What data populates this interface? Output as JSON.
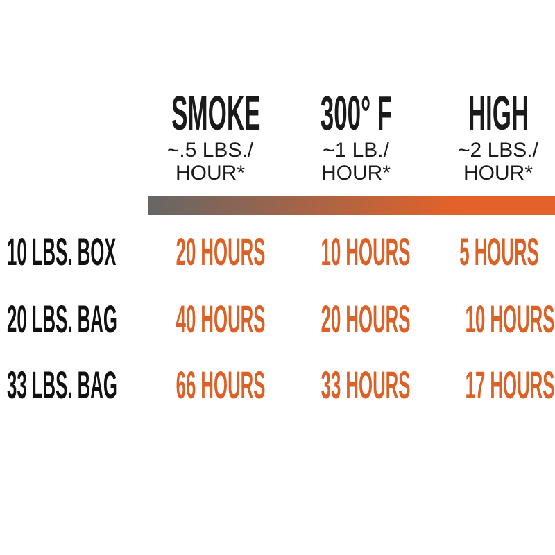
{
  "accent_color": "#dc6127",
  "gradient": {
    "from": "#666666",
    "to": "#e2622a"
  },
  "columns": [
    {
      "title": "SMOKE",
      "rate_line1": "~.5 LBS./",
      "rate_line2": "HOUR*"
    },
    {
      "title": "300° F",
      "rate_line1": "~1 LB./",
      "rate_line2": "HOUR*"
    },
    {
      "title": "HIGH",
      "rate_line1": "~2 LBS./",
      "rate_line2": "HOUR*"
    }
  ],
  "rows": [
    {
      "label": "10 LBS. BOX",
      "values": [
        "20 HOURS",
        "10 HOURS",
        "5 HOURS"
      ]
    },
    {
      "label": "20 LBS. BAG",
      "values": [
        "40 HOURS",
        "20 HOURS",
        "10 HOURS"
      ]
    },
    {
      "label": "33 LBS. BAG",
      "values": [
        "66 HOURS",
        "33 HOURS",
        "17 HOURS"
      ]
    }
  ],
  "chart_data": {
    "type": "table",
    "columns": [
      "SMOKE ~.5 LBS./HOUR*",
      "300° F ~1 LB./HOUR*",
      "HIGH ~2 LBS./HOUR*"
    ],
    "rows": [
      "10 LBS. BOX",
      "20 LBS. BAG",
      "33 LBS. BAG"
    ],
    "values_hours": [
      [
        20,
        10,
        5
      ],
      [
        40,
        20,
        10
      ],
      [
        66,
        33,
        17
      ]
    ]
  }
}
